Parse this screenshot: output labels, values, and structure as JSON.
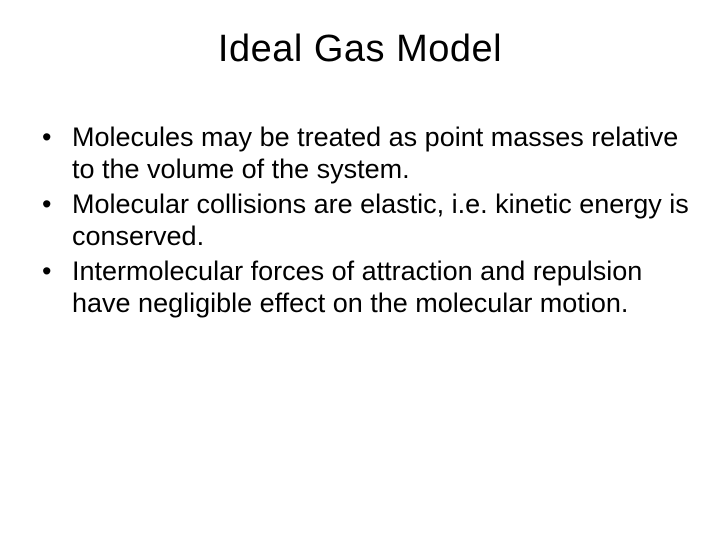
{
  "title": "Ideal Gas Model",
  "bullets": [
    "Molecules may be treated as point masses relative to the volume of the system.",
    "Molecular collisions are elastic, i.e. kinetic energy is conserved.",
    "Intermolecular forces of attraction and repulsion have negligible effect on the molecular motion."
  ],
  "colors": {
    "background": "#ffffff",
    "text": "#000000"
  },
  "typography": {
    "title_fontsize": 38,
    "body_fontsize": 27,
    "font_family": "Arial"
  }
}
